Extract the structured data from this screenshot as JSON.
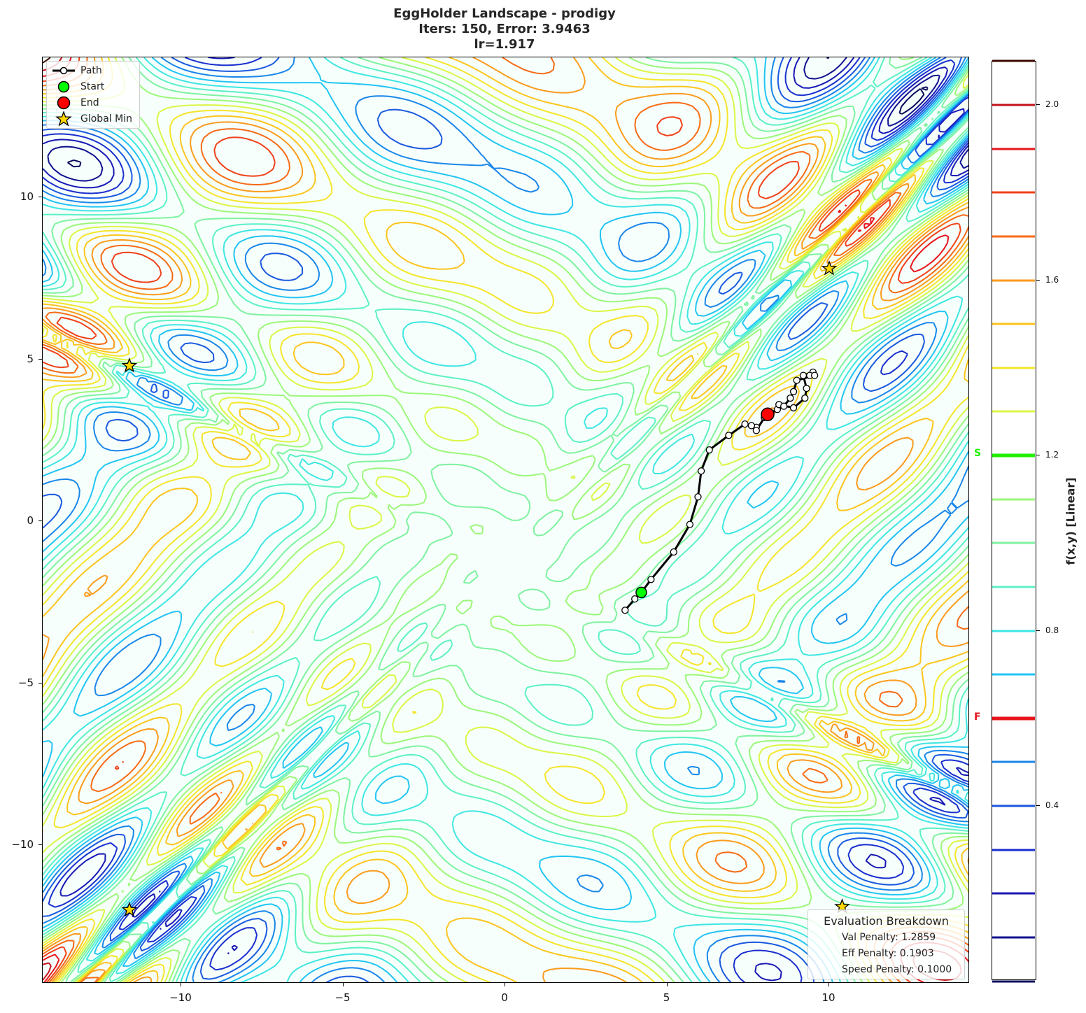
{
  "title": {
    "line1": "EggHolder Landscape - prodigy",
    "line2": "Iters: 150, Error: 3.9463",
    "line3": "lr=1.917"
  },
  "legend": {
    "items": [
      {
        "label": "Path",
        "symbol": "line-with-white-circle",
        "color": "#000000"
      },
      {
        "label": "Start",
        "symbol": "circle",
        "color": "#00ff00"
      },
      {
        "label": "End",
        "symbol": "circle",
        "color": "#ff0000"
      },
      {
        "label": "Global Min",
        "symbol": "star",
        "color": "#ffd700"
      }
    ]
  },
  "evaluation": {
    "header": "Evaluation Breakdown",
    "val_penalty": "Val Penalty: 1.2859",
    "eff_penalty": "Eff Penalty: 0.1903",
    "speed_penalty": "Speed Penalty: 0.1000"
  },
  "colorbar": {
    "label": "f(x,y) [Linear]",
    "ticks": [
      "2.0",
      "1.6",
      "1.2",
      "0.8",
      "0.4"
    ],
    "start_marker": "S",
    "final_marker": "F",
    "start_color": "#22ee00",
    "final_color": "#e8141c",
    "levels": [
      {
        "v": 2.1,
        "color": "#3a0a00"
      },
      {
        "v": 2.0,
        "color": "#c4121c"
      },
      {
        "v": 1.9,
        "color": "#e8141c"
      },
      {
        "v": 1.8,
        "color": "#f0401a"
      },
      {
        "v": 1.7,
        "color": "#f76a16"
      },
      {
        "v": 1.6,
        "color": "#fb9a1c"
      },
      {
        "v": 1.5,
        "color": "#fcc41e"
      },
      {
        "v": 1.4,
        "color": "#f6e42a"
      },
      {
        "v": 1.3,
        "color": "#dcf546"
      },
      {
        "v": 1.1,
        "color": "#9cf77a"
      },
      {
        "v": 1.0,
        "color": "#7ef2a0"
      },
      {
        "v": 0.9,
        "color": "#5cf0c6"
      },
      {
        "v": 0.8,
        "color": "#3ee6e4"
      },
      {
        "v": 0.7,
        "color": "#22c4f4"
      },
      {
        "v": 0.5,
        "color": "#1a86ea"
      },
      {
        "v": 0.4,
        "color": "#1a58e0"
      },
      {
        "v": 0.3,
        "color": "#1a2ed0"
      },
      {
        "v": 0.2,
        "color": "#1818b4"
      },
      {
        "v": 0.1,
        "color": "#101090"
      },
      {
        "v": 0.0,
        "color": "#0a0a5a"
      }
    ]
  },
  "chart_data": {
    "type": "contour",
    "title": "EggHolder Landscape - prodigy | Iters: 150, Error: 3.9463 | lr=1.917",
    "xlabel": "",
    "ylabel": "",
    "xlim": [
      -14.3,
      14.3
    ],
    "ylim": [
      -14.3,
      14.3
    ],
    "xticks": [
      -10,
      -5,
      0,
      5,
      10
    ],
    "yticks": [
      -10,
      -5,
      0,
      5,
      10
    ],
    "colorbar_label": "f(x,y) [Linear]",
    "colorbar_range": [
      0.2,
      2.1
    ],
    "colorbar_ticks": [
      0.4,
      0.8,
      1.2,
      1.6,
      2.0
    ],
    "start_value": 1.2,
    "final_value": 0.6,
    "global_minima": [
      [
        -11.6,
        4.8
      ],
      [
        10.0,
        7.8
      ],
      [
        -11.6,
        -12.0
      ],
      [
        10.4,
        -11.9
      ]
    ],
    "path": {
      "start": [
        4.2,
        -2.2
      ],
      "end": [
        8.1,
        3.3
      ],
      "points": [
        [
          3.7,
          -2.75
        ],
        [
          4.0,
          -2.4
        ],
        [
          4.2,
          -2.2
        ],
        [
          4.5,
          -1.8
        ],
        [
          5.2,
          -0.95
        ],
        [
          5.7,
          -0.1
        ],
        [
          5.95,
          0.75
        ],
        [
          6.05,
          1.55
        ],
        [
          6.3,
          2.2
        ],
        [
          6.9,
          2.65
        ],
        [
          7.4,
          3.0
        ],
        [
          7.75,
          2.9
        ],
        [
          7.6,
          2.95
        ],
        [
          7.75,
          2.8
        ],
        [
          8.0,
          3.2
        ],
        [
          8.4,
          3.45
        ],
        [
          8.45,
          3.6
        ],
        [
          8.9,
          3.5
        ],
        [
          9.25,
          3.8
        ],
        [
          9.3,
          4.1
        ],
        [
          9.2,
          4.5
        ],
        [
          9.5,
          4.6
        ],
        [
          9.4,
          4.5
        ],
        [
          9.55,
          4.5
        ],
        [
          9.0,
          4.35
        ],
        [
          8.9,
          4.0
        ],
        [
          8.8,
          3.8
        ],
        [
          8.6,
          3.55
        ],
        [
          8.1,
          3.3
        ]
      ],
      "iterations": 150
    },
    "legend": [
      "Path",
      "Start",
      "End",
      "Global Min"
    ],
    "legend_position": "upper left",
    "annotations": [
      "Evaluation Breakdown",
      "Val Penalty: 1.2859",
      "Eff Penalty: 0.1903",
      "Speed Penalty: 0.1000"
    ],
    "grid": false
  }
}
